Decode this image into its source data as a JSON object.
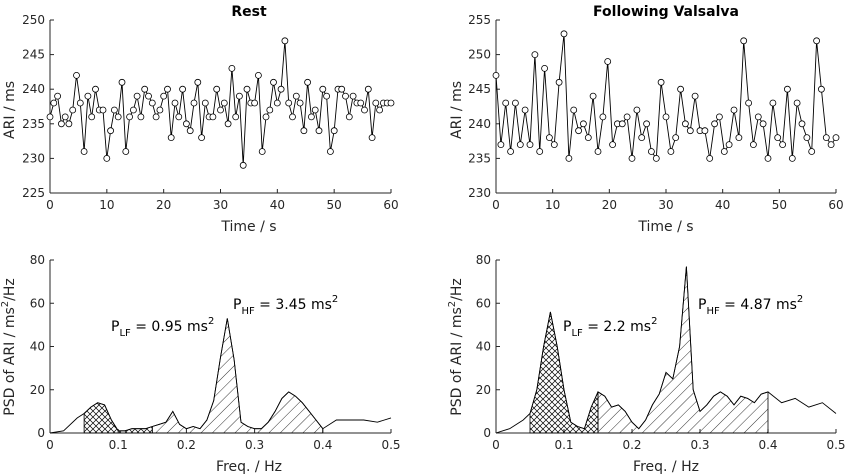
{
  "chart_data": [
    {
      "type": "line",
      "title": "Rest",
      "xlabel": "Time / s",
      "ylabel": "ARI / ms",
      "xlim": [
        0,
        60
      ],
      "ylim": [
        225,
        250
      ],
      "xticks": [
        "0",
        "10",
        "20",
        "30",
        "40",
        "50",
        "60"
      ],
      "yticks": [
        "225",
        "230",
        "235",
        "240",
        "245",
        "250"
      ],
      "x_step": 1,
      "values": [
        236,
        238,
        239,
        235,
        236,
        235,
        237,
        242,
        238,
        231,
        239,
        236,
        240,
        237,
        237,
        230,
        234,
        237,
        236,
        241,
        231,
        236,
        237,
        239,
        236,
        240,
        239,
        238,
        236,
        237,
        239,
        240,
        233,
        238,
        236,
        240,
        235,
        234,
        238,
        241,
        233,
        238,
        236,
        236,
        240,
        237,
        238,
        235,
        243,
        236,
        239,
        229,
        240,
        238,
        238,
        242,
        231,
        236,
        237,
        241,
        238,
        240,
        247,
        238,
        236,
        239,
        238,
        234,
        241,
        236,
        237,
        234,
        240,
        239,
        231,
        234,
        240,
        240,
        239,
        236,
        239,
        238,
        238,
        237,
        240,
        233,
        238,
        237,
        238,
        238,
        238
      ],
      "markers_every": 1
    },
    {
      "type": "line",
      "title": "Following Valsalva",
      "xlabel": "Time / s",
      "ylabel": "ARI / ms",
      "xlim": [
        0,
        60
      ],
      "ylim": [
        230,
        255
      ],
      "xticks": [
        "0",
        "10",
        "20",
        "30",
        "40",
        "50",
        "60"
      ],
      "yticks": [
        "230",
        "235",
        "240",
        "245",
        "250",
        "255"
      ],
      "x_step": 1,
      "values": [
        247,
        237,
        243,
        236,
        243,
        237,
        242,
        237,
        250,
        236,
        248,
        238,
        237,
        246,
        253,
        235,
        242,
        239,
        240,
        238,
        244,
        236,
        241,
        249,
        237,
        240,
        240,
        241,
        235,
        242,
        238,
        240,
        236,
        235,
        246,
        241,
        236,
        238,
        245,
        240,
        239,
        244,
        239,
        239,
        235,
        240,
        241,
        236,
        237,
        242,
        238,
        252,
        243,
        237,
        241,
        240,
        235,
        243,
        238,
        237,
        245,
        235,
        243,
        240,
        238,
        236,
        252,
        245,
        238,
        237,
        238
      ],
      "markers_every": 1
    },
    {
      "type": "area",
      "title": "",
      "xlabel": "Freq. / Hz",
      "ylabel": "PSD of ARI / ms²/Hz",
      "ylabel_parts": [
        "PSD of ARI / ms",
        "2",
        "/Hz"
      ],
      "xlim": [
        0,
        0.5
      ],
      "ylim": [
        0,
        80
      ],
      "xticks": [
        "0",
        "0.1",
        "0.2",
        "0.3",
        "0.4",
        "0.5"
      ],
      "yticks": [
        "0",
        "20",
        "40",
        "60",
        "80"
      ],
      "x": [
        0,
        0.02,
        0.04,
        0.05,
        0.06,
        0.07,
        0.08,
        0.09,
        0.1,
        0.11,
        0.12,
        0.13,
        0.14,
        0.15,
        0.16,
        0.17,
        0.18,
        0.19,
        0.2,
        0.21,
        0.22,
        0.23,
        0.24,
        0.25,
        0.26,
        0.27,
        0.28,
        0.29,
        0.3,
        0.31,
        0.32,
        0.33,
        0.34,
        0.35,
        0.36,
        0.37,
        0.38,
        0.39,
        0.4,
        0.42,
        0.44,
        0.46,
        0.48,
        0.5
      ],
      "values": [
        0,
        1,
        7,
        9,
        12,
        14,
        13,
        6,
        1,
        1,
        2,
        2,
        2,
        3,
        4,
        5,
        10,
        4,
        2,
        3,
        2,
        6,
        15,
        35,
        53,
        34,
        5,
        3,
        2,
        2,
        5,
        10,
        16,
        19,
        17,
        14,
        10,
        6,
        2,
        6,
        6,
        6,
        5,
        7
      ],
      "bands": {
        "lf": [
          0.05,
          0.15
        ],
        "hf": [
          0.15,
          0.4
        ]
      },
      "annotations": [
        {
          "text": "P",
          "sub": "LF",
          "rest": " = 0.95 ms",
          "sup": "2"
        },
        {
          "text": "P",
          "sub": "HF",
          "rest": " = 3.45 ms",
          "sup": "2"
        }
      ]
    },
    {
      "type": "area",
      "title": "",
      "xlabel": "Freq. / Hz",
      "ylabel": "PSD of ARI / ms²/Hz",
      "ylabel_parts": [
        "PSD of ARI / ms",
        "2",
        "/Hz"
      ],
      "xlim": [
        0,
        0.5
      ],
      "ylim": [
        0,
        80
      ],
      "xticks": [
        "0",
        "0.1",
        "0.2",
        "0.3",
        "0.4",
        "0.5"
      ],
      "yticks": [
        "0",
        "20",
        "40",
        "60",
        "80"
      ],
      "x": [
        0,
        0.01,
        0.02,
        0.03,
        0.04,
        0.05,
        0.06,
        0.07,
        0.08,
        0.09,
        0.1,
        0.11,
        0.12,
        0.13,
        0.14,
        0.15,
        0.16,
        0.17,
        0.18,
        0.19,
        0.2,
        0.21,
        0.22,
        0.23,
        0.24,
        0.25,
        0.26,
        0.27,
        0.28,
        0.29,
        0.3,
        0.31,
        0.32,
        0.33,
        0.34,
        0.35,
        0.36,
        0.37,
        0.38,
        0.39,
        0.4,
        0.42,
        0.44,
        0.46,
        0.48,
        0.5
      ],
      "values": [
        0,
        1,
        2,
        4,
        6,
        9,
        20,
        40,
        56,
        40,
        20,
        5,
        3,
        2,
        12,
        19,
        17,
        12,
        13,
        10,
        5,
        2,
        6,
        13,
        18,
        28,
        25,
        40,
        77,
        20,
        10,
        13,
        17,
        19,
        17,
        13,
        17,
        16,
        14,
        18,
        19,
        14,
        16,
        12,
        14,
        9
      ],
      "bands": {
        "lf": [
          0.05,
          0.15
        ],
        "hf": [
          0.15,
          0.4
        ]
      },
      "annotations": [
        {
          "text": "P",
          "sub": "LF",
          "rest": " = 2.2 ms",
          "sup": "2"
        },
        {
          "text": "P",
          "sub": "HF",
          "rest": " = 4.87 ms",
          "sup": "2"
        }
      ]
    }
  ]
}
